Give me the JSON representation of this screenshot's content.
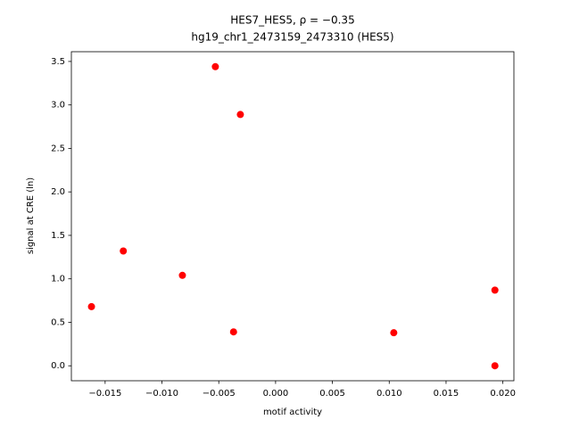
{
  "chart_data": {
    "type": "scatter",
    "title": "HES7_HES5, ρ = −0.35",
    "subtitle": "hg19_chr1_2473159_2473310 (HES5)",
    "x_label": "motif activity",
    "y_label": "signal at CRE (ln)",
    "color": "#ff0000",
    "x": [
      -0.0162,
      -0.0134,
      -0.0082,
      -0.0053,
      -0.0037,
      -0.0031,
      0.0104,
      0.0193,
      0.0193
    ],
    "values": [
      0.68,
      1.32,
      1.04,
      3.44,
      0.39,
      2.89,
      0.38,
      0.87,
      0.0
    ],
    "xlim": [
      -0.01797,
      0.02097
    ],
    "ylim": [
      -0.172,
      3.612
    ],
    "xticks": [
      {
        "value": -0.015,
        "label": "−0.015"
      },
      {
        "value": -0.01,
        "label": "−0.010"
      },
      {
        "value": -0.005,
        "label": "−0.005"
      },
      {
        "value": 0,
        "label": "0.000"
      },
      {
        "value": 0.005,
        "label": "0.005"
      },
      {
        "value": 0.01,
        "label": "0.010"
      },
      {
        "value": 0.015,
        "label": "0.015"
      },
      {
        "value": 0.02,
        "label": "0.020"
      }
    ],
    "yticks": [
      {
        "value": 0,
        "label": "0.0"
      },
      {
        "value": 0.5,
        "label": "0.5"
      },
      {
        "value": 1,
        "label": "1.0"
      },
      {
        "value": 1.5,
        "label": "1.5"
      },
      {
        "value": 2,
        "label": "2.0"
      },
      {
        "value": 2.5,
        "label": "2.5"
      },
      {
        "value": 3,
        "label": "3.0"
      },
      {
        "value": 3.5,
        "label": "3.5"
      }
    ],
    "grid": false
  }
}
